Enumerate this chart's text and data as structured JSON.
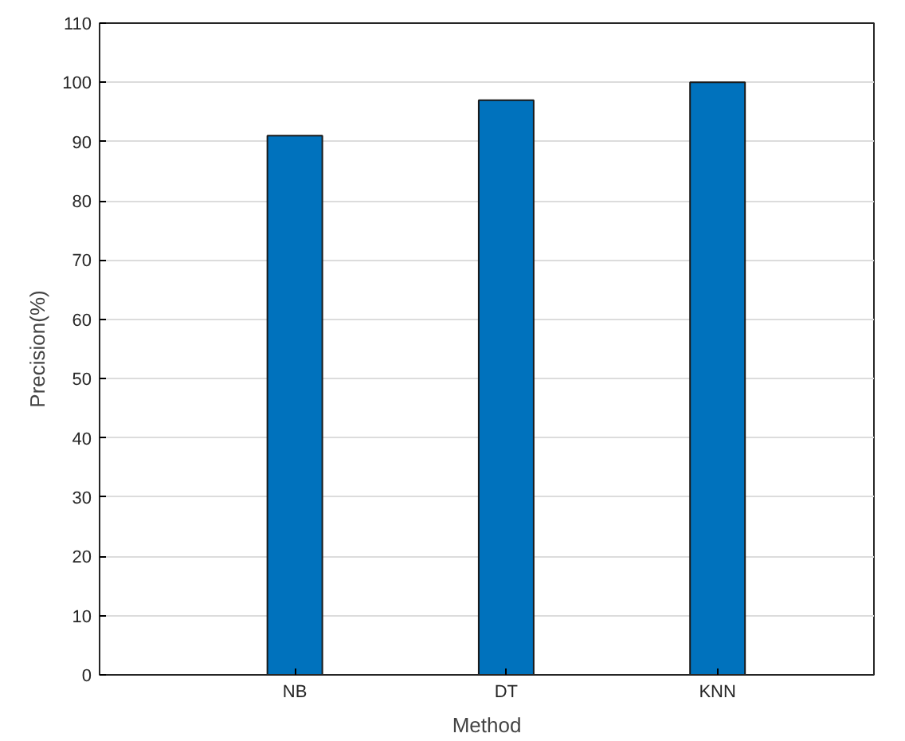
{
  "chart_data": {
    "type": "bar",
    "xlabel": "Method",
    "ylabel": "Precision(%)",
    "categories": [
      "NB",
      "DT",
      "KNN"
    ],
    "values": [
      91,
      97,
      100
    ],
    "color": "#0072bd",
    "ylim": [
      0,
      110
    ],
    "yticks": [
      0,
      10,
      20,
      30,
      40,
      50,
      60,
      70,
      80,
      90,
      100,
      110
    ],
    "grid": true
  }
}
